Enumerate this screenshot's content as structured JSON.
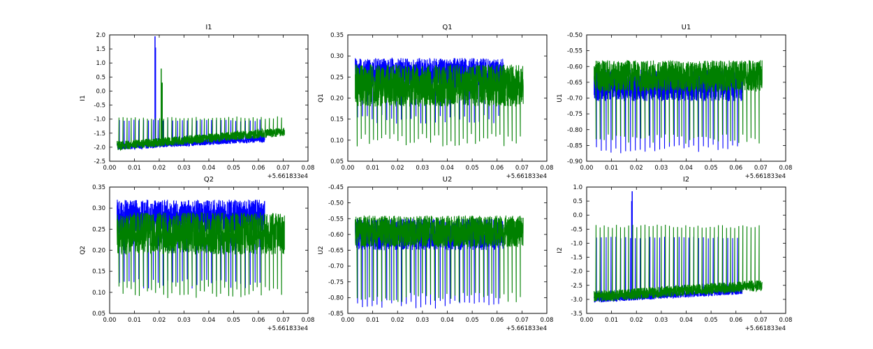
{
  "chart_data": [
    {
      "type": "line",
      "title": "I1",
      "ylabel": "I1",
      "xlabel": "",
      "xlim": [
        0.0,
        0.08
      ],
      "ylim": [
        -2.5,
        2.0
      ],
      "xticks": [
        "0.00",
        "0.01",
        "0.02",
        "0.03",
        "0.04",
        "0.05",
        "0.06",
        "0.07",
        "0.08"
      ],
      "yticks": [
        "-2.5",
        "-2.0",
        "-1.5",
        "-1.0",
        "-0.5",
        "0.0",
        "0.5",
        "1.0",
        "1.5",
        "2.0"
      ],
      "x_offset_label": "+5.661833e4",
      "series": [
        {
          "color": "#0000ff",
          "x_range": [
            0.003,
            0.0625
          ],
          "base": [
            -1.98,
            -1.7
          ],
          "band": 0.12,
          "spikes_to": -1.05,
          "spike_count": 30,
          "peaks": [
            {
              "x": 0.0183,
              "y": 1.95
            },
            {
              "x": 0.0185,
              "y": 1.55
            }
          ]
        },
        {
          "color": "#008000",
          "x_range": [
            0.003,
            0.0705
          ],
          "base": [
            -1.95,
            -1.45
          ],
          "band": 0.16,
          "spikes_to": -0.95,
          "spike_count": 40,
          "peaks": [
            {
              "x": 0.0208,
              "y": 0.8
            },
            {
              "x": 0.0212,
              "y": 0.3
            }
          ]
        }
      ]
    },
    {
      "type": "line",
      "title": "Q1",
      "ylabel": "Q1",
      "xlabel": "",
      "xlim": [
        0.0,
        0.08
      ],
      "ylim": [
        0.05,
        0.35
      ],
      "xticks": [
        "0.00",
        "0.01",
        "0.02",
        "0.03",
        "0.04",
        "0.05",
        "0.06",
        "0.07",
        "0.08"
      ],
      "yticks": [
        "0.05",
        "0.10",
        "0.15",
        "0.20",
        "0.25",
        "0.30",
        "0.35"
      ],
      "x_offset_label": "+5.661833e4",
      "series": [
        {
          "color": "#0000ff",
          "x_range": [
            0.003,
            0.0625
          ],
          "base": [
            0.26,
            0.26
          ],
          "band": 0.035,
          "spikes_to": 0.15,
          "spike_count": 30,
          "peaks": []
        },
        {
          "color": "#008000",
          "x_range": [
            0.003,
            0.0705
          ],
          "base": [
            0.23,
            0.23
          ],
          "band": 0.05,
          "spikes_to": 0.1,
          "spike_count": 40,
          "peaks": []
        }
      ]
    },
    {
      "type": "line",
      "title": "U1",
      "ylabel": "U1",
      "xlabel": "",
      "xlim": [
        0.0,
        0.08
      ],
      "ylim": [
        -0.9,
        -0.5
      ],
      "xticks": [
        "0.00",
        "0.01",
        "0.02",
        "0.03",
        "0.04",
        "0.05",
        "0.06",
        "0.07",
        "0.08"
      ],
      "yticks": [
        "-0.90",
        "-0.85",
        "-0.80",
        "-0.75",
        "-0.70",
        "-0.65",
        "-0.60",
        "-0.55",
        "-0.50"
      ],
      "x_offset_label": "+5.661833e4",
      "series": [
        {
          "color": "#0000ff",
          "x_range": [
            0.003,
            0.0625
          ],
          "base": [
            -0.66,
            -0.66
          ],
          "band": 0.05,
          "spikes_to": -0.86,
          "spike_count": 30,
          "peaks": []
        },
        {
          "color": "#008000",
          "x_range": [
            0.003,
            0.0705
          ],
          "base": [
            -0.63,
            -0.63
          ],
          "band": 0.05,
          "spikes_to": -0.83,
          "spike_count": 40,
          "peaks": []
        }
      ]
    },
    {
      "type": "line",
      "title": "Q2",
      "ylabel": "Q2",
      "xlabel": "",
      "xlim": [
        0.0,
        0.08
      ],
      "ylim": [
        0.05,
        0.35
      ],
      "xticks": [
        "0.00",
        "0.01",
        "0.02",
        "0.03",
        "0.04",
        "0.05",
        "0.06",
        "0.07",
        "0.08"
      ],
      "yticks": [
        "0.05",
        "0.10",
        "0.15",
        "0.20",
        "0.25",
        "0.30",
        "0.35"
      ],
      "x_offset_label": "+5.661833e4",
      "series": [
        {
          "color": "#0000ff",
          "x_range": [
            0.003,
            0.0625
          ],
          "base": [
            0.28,
            0.28
          ],
          "band": 0.04,
          "spikes_to": 0.12,
          "spike_count": 30,
          "peaks": []
        },
        {
          "color": "#008000",
          "x_range": [
            0.003,
            0.0705
          ],
          "base": [
            0.24,
            0.24
          ],
          "band": 0.05,
          "spikes_to": 0.1,
          "spike_count": 40,
          "peaks": []
        }
      ]
    },
    {
      "type": "line",
      "title": "U2",
      "ylabel": "U2",
      "xlabel": "",
      "xlim": [
        0.0,
        0.08
      ],
      "ylim": [
        -0.85,
        -0.45
      ],
      "xticks": [
        "0.00",
        "0.01",
        "0.02",
        "0.03",
        "0.04",
        "0.05",
        "0.06",
        "0.07",
        "0.08"
      ],
      "yticks": [
        "-0.85",
        "-0.80",
        "-0.75",
        "-0.70",
        "-0.65",
        "-0.60",
        "-0.55",
        "-0.50",
        "-0.45"
      ],
      "x_offset_label": "+5.661833e4",
      "series": [
        {
          "color": "#0000ff",
          "x_range": [
            0.003,
            0.0625
          ],
          "base": [
            -0.6,
            -0.6
          ],
          "band": 0.05,
          "spikes_to": -0.82,
          "spike_count": 30,
          "peaks": []
        },
        {
          "color": "#008000",
          "x_range": [
            0.003,
            0.0705
          ],
          "base": [
            -0.59,
            -0.59
          ],
          "band": 0.05,
          "spikes_to": -0.8,
          "spike_count": 40,
          "peaks": []
        }
      ]
    },
    {
      "type": "line",
      "title": "I2",
      "ylabel": "I2",
      "xlabel": "",
      "xlim": [
        0.0,
        0.08
      ],
      "ylim": [
        -3.5,
        1.0
      ],
      "xticks": [
        "0.00",
        "0.01",
        "0.02",
        "0.03",
        "0.04",
        "0.05",
        "0.06",
        "0.07",
        "0.08"
      ],
      "yticks": [
        "-3.5",
        "-3.0",
        "-2.5",
        "-2.0",
        "-1.5",
        "-1.0",
        "-0.5",
        "0.0",
        "0.5",
        "1.0"
      ],
      "x_offset_label": "+5.661833e4",
      "series": [
        {
          "color": "#0000ff",
          "x_range": [
            0.003,
            0.0625
          ],
          "base": [
            -3.0,
            -2.7
          ],
          "band": 0.12,
          "spikes_to": -0.8,
          "spike_count": 30,
          "peaks": [
            {
              "x": 0.0183,
              "y": 0.85
            },
            {
              "x": 0.0181,
              "y": 0.5
            }
          ]
        },
        {
          "color": "#008000",
          "x_range": [
            0.003,
            0.0705
          ],
          "base": [
            -2.9,
            -2.5
          ],
          "band": 0.2,
          "spikes_to": -0.4,
          "spike_count": 40,
          "peaks": []
        }
      ]
    }
  ]
}
